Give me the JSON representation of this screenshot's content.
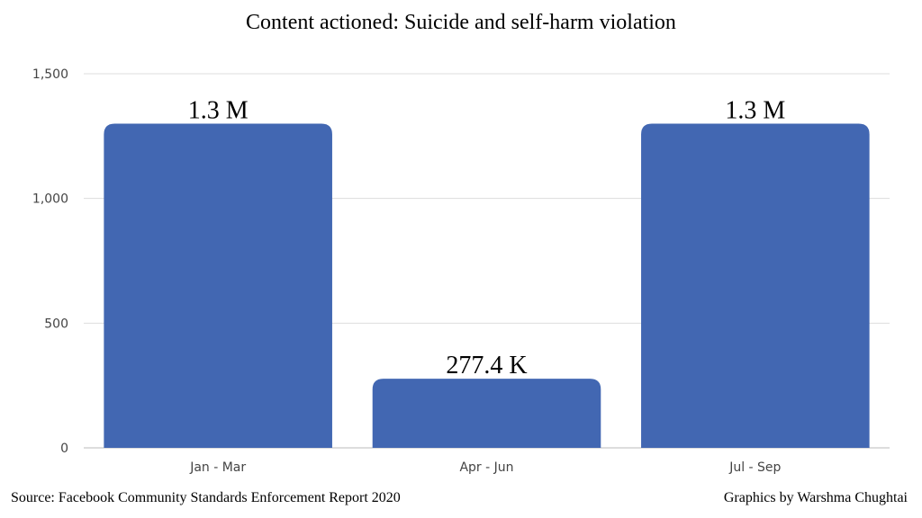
{
  "chart_data": {
    "type": "bar",
    "title": "Content actioned: Suicide and self-harm violation",
    "categories": [
      "Jan - Mar",
      "Apr - Jun",
      "Jul - Sep"
    ],
    "values": [
      1300,
      277.4,
      1300
    ],
    "data_labels": [
      "1.3 M",
      "277.4 K",
      "1.3 M"
    ],
    "ylim": [
      0,
      1500
    ],
    "yticks": [
      0,
      500,
      1000,
      1500
    ],
    "ytick_labels": [
      "0",
      "500",
      "1,000",
      "1,500"
    ],
    "xlabel": "",
    "ylabel": "",
    "grid": true,
    "bar_color": "#4267b2",
    "grid_color": "#dddddd"
  },
  "footer": {
    "source": "Source: Facebook Community Standards Enforcement Report 2020",
    "credit": "Graphics by Warshma Chughtai"
  }
}
